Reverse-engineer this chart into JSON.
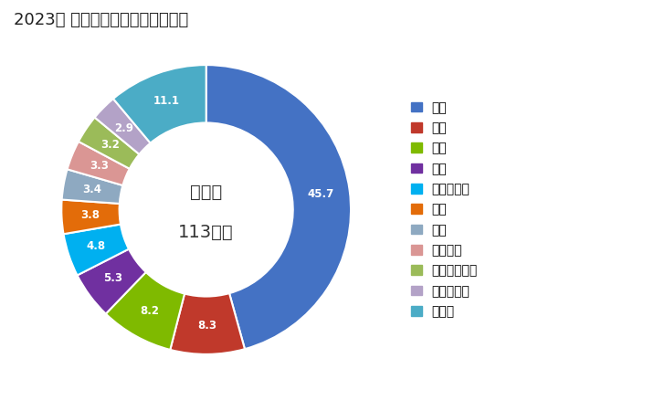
{
  "title": "2023年 輸出相手国のシェア（％）",
  "center_text_line1": "総　額",
  "center_text_line2": "113億円",
  "labels": [
    "中国",
    "台湾",
    "米国",
    "韓国",
    "ノルウェー",
    "タイ",
    "香港",
    "オランダ",
    "インドネシア",
    "マレーシア",
    "その他"
  ],
  "values": [
    45.7,
    8.3,
    8.2,
    5.3,
    4.8,
    3.8,
    3.4,
    3.3,
    3.2,
    2.9,
    11.1
  ],
  "colors": [
    "#4472C4",
    "#C0392B",
    "#7FBA00",
    "#7030A0",
    "#00B0F0",
    "#E36C09",
    "#8EA9C1",
    "#DA9694",
    "#9BBB59",
    "#B3A2C7",
    "#4BACC6"
  ],
  "background_color": "#FFFFFF",
  "title_fontsize": 13,
  "label_fontsize": 9,
  "legend_fontsize": 10
}
